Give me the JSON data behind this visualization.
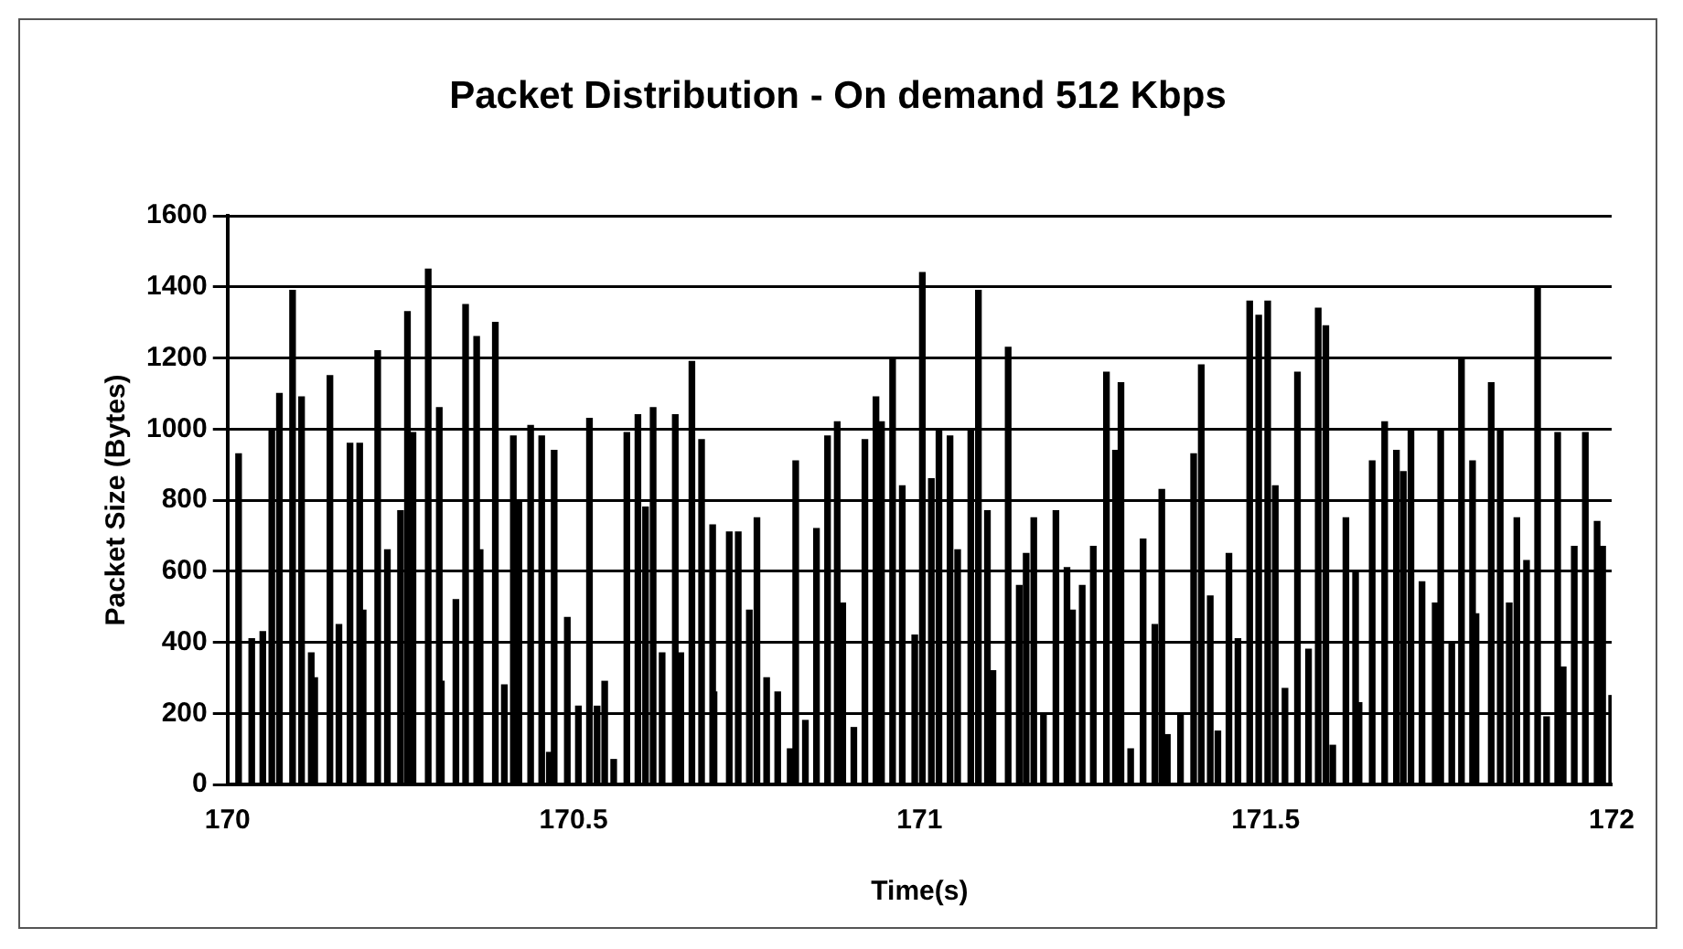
{
  "chart_data": {
    "type": "bar",
    "title": "Packet Distribution - On demand 512 Kbps",
    "xlabel": "Time(s)",
    "ylabel": "Packet Size (Bytes)",
    "x": [
      170.016,
      170.035,
      170.051,
      170.064,
      170.075,
      170.094,
      170.107,
      170.121,
      170.126,
      170.148,
      170.161,
      170.177,
      170.191,
      170.196,
      170.217,
      170.231,
      170.25,
      170.26,
      170.268,
      170.29,
      170.306,
      170.309,
      170.33,
      170.344,
      170.36,
      170.365,
      170.387,
      170.4,
      170.413,
      170.421,
      170.438,
      170.454,
      170.465,
      170.472,
      170.491,
      170.507,
      170.523,
      170.534,
      170.545,
      170.558,
      170.577,
      170.593,
      170.604,
      170.615,
      170.628,
      170.647,
      170.655,
      170.671,
      170.685,
      170.701,
      170.703,
      170.725,
      170.738,
      170.754,
      170.765,
      170.779,
      170.795,
      170.813,
      170.821,
      170.835,
      170.851,
      170.867,
      170.881,
      170.889,
      170.905,
      170.921,
      170.937,
      170.945,
      170.961,
      170.975,
      170.993,
      171.004,
      171.017,
      171.028,
      171.044,
      171.055,
      171.074,
      171.085,
      171.098,
      171.106,
      171.128,
      171.144,
      171.154,
      171.165,
      171.179,
      171.197,
      171.213,
      171.221,
      171.235,
      171.251,
      171.27,
      171.283,
      171.291,
      171.305,
      171.323,
      171.34,
      171.35,
      171.358,
      171.377,
      171.396,
      171.407,
      171.42,
      171.431,
      171.447,
      171.46,
      171.477,
      171.49,
      171.503,
      171.514,
      171.528,
      171.546,
      171.562,
      171.576,
      171.587,
      171.597,
      171.616,
      171.63,
      171.635,
      171.654,
      171.672,
      171.689,
      171.699,
      171.71,
      171.726,
      171.745,
      171.753,
      171.769,
      171.783,
      171.799,
      171.804,
      171.826,
      171.839,
      171.852,
      171.863,
      171.877,
      171.893,
      171.906,
      171.922,
      171.93,
      171.946,
      171.962,
      171.979,
      171.987,
      172
    ],
    "values": [
      930,
      410,
      430,
      1000,
      1100,
      1390,
      1090,
      370,
      300,
      1150,
      450,
      960,
      960,
      490,
      1220,
      660,
      770,
      1330,
      990,
      1450,
      1060,
      290,
      520,
      1350,
      1260,
      660,
      1300,
      280,
      980,
      800,
      1010,
      980,
      90,
      940,
      470,
      220,
      1030,
      220,
      290,
      70,
      990,
      1040,
      780,
      1060,
      370,
      1040,
      370,
      1190,
      970,
      730,
      260,
      710,
      710,
      490,
      750,
      300,
      260,
      100,
      910,
      180,
      720,
      980,
      1020,
      510,
      160,
      970,
      1090,
      1020,
      1200,
      840,
      420,
      1440,
      860,
      1000,
      980,
      660,
      1000,
      1390,
      770,
      320,
      1230,
      560,
      650,
      750,
      200,
      770,
      610,
      490,
      560,
      670,
      1160,
      940,
      1130,
      100,
      690,
      450,
      830,
      140,
      200,
      930,
      1180,
      530,
      150,
      650,
      410,
      1360,
      1320,
      1360,
      840,
      270,
      1160,
      380,
      1340,
      1290,
      110,
      750,
      600,
      230,
      910,
      1020,
      940,
      880,
      1000,
      570,
      510,
      1000,
      400,
      1200,
      910,
      480,
      1130,
      1000,
      510,
      750,
      630,
      1400,
      190,
      990,
      330,
      670,
      990,
      740,
      670,
      250
    ],
    "color": "#000000",
    "xlim": [
      170,
      172
    ],
    "xticks": [
      170,
      170.5,
      171,
      171.5,
      172
    ],
    "ylim": [
      0,
      1600
    ],
    "yticks": [
      0,
      200,
      400,
      600,
      800,
      1000,
      1200,
      1400,
      1600
    ],
    "grid": "y",
    "legend": false
  }
}
